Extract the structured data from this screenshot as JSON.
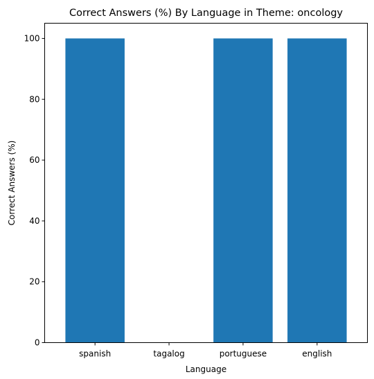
{
  "chart_data": {
    "type": "bar",
    "title": "Correct Answers (%) By Language in Theme: oncology",
    "xlabel": "Language",
    "ylabel": "Correct Answers (%)",
    "categories": [
      "spanish",
      "tagalog",
      "portuguese",
      "english"
    ],
    "values": [
      100,
      0,
      100,
      100
    ],
    "ylim": [
      0,
      105
    ],
    "yticks": [
      0,
      20,
      40,
      60,
      80,
      100
    ],
    "bar_color": "#1f77b4",
    "grid": false,
    "legend": "none"
  }
}
